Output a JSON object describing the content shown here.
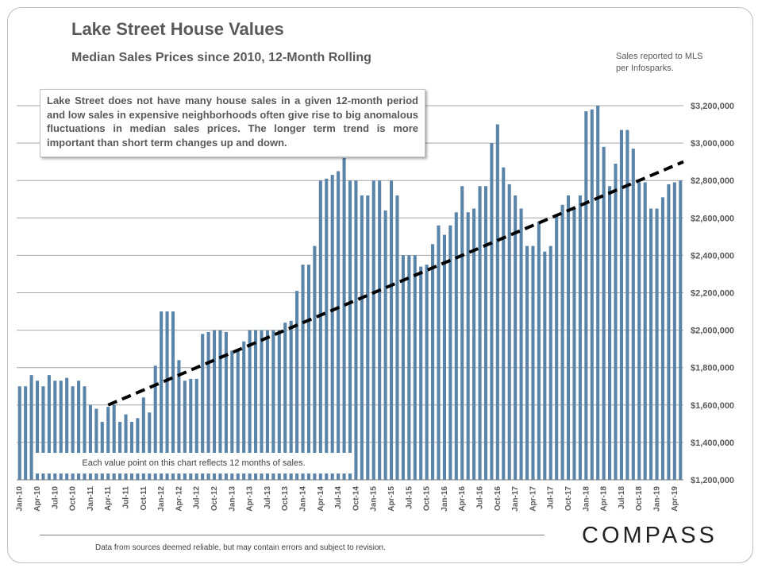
{
  "header": {
    "title": "Lake Street House Values",
    "subtitle": "Median Sales Prices since 2010, 12-Month Rolling",
    "source": [
      "Sales reported to MLS",
      "per Infosparks."
    ]
  },
  "note": "Lake Street does not have many house sales in a given 12-month period and low sales in expensive neighborhoods often give rise to big anomalous fluctuations in median sales prices. The longer term trend is more important than short term changes up and down.",
  "each_value_note": "Each value point on this chart reflects 12 months of sales.",
  "footer": "Data from sources deemed reliable, but may contain errors and subject to revision.",
  "logo": "COMPASS",
  "colors": {
    "bar": "#5b84a9",
    "trend": "#000000",
    "grid": "#a6a6a6",
    "text": "#595959"
  },
  "chart_data": {
    "type": "bar",
    "title": "Lake Street House Values",
    "subtitle": "Median Sales Prices since 2010, 12-Month Rolling",
    "ylim": [
      1200000,
      3200000
    ],
    "yticks": [
      1200000,
      1400000,
      1600000,
      1800000,
      2000000,
      2200000,
      2400000,
      2600000,
      2800000,
      3000000,
      3200000
    ],
    "ytick_labels": [
      "$1,200,000",
      "$1,400,000",
      "$1,600,000",
      "$1,800,000",
      "$2,000,000",
      "$2,200,000",
      "$2,400,000",
      "$2,600,000",
      "$2,800,000",
      "$3,000,000",
      "$3,200,000"
    ],
    "y_axis_position": "right",
    "grid": true,
    "x_labels": [
      "Jan-10",
      "Apr-10",
      "Jul-10",
      "Oct-10",
      "Jan-11",
      "Apr-11",
      "Jul-11",
      "Oct-11",
      "Jan-12",
      "Apr-12",
      "Jul-12",
      "Oct-12",
      "Jan-13",
      "Apr-13",
      "Jul-13",
      "Oct-13",
      "Jan-14",
      "Apr-14",
      "Jul-14",
      "Oct-14",
      "Jan-15",
      "Apr-15",
      "Jul-15",
      "Oct-15",
      "Jan-16",
      "Apr-16",
      "Jul-16",
      "Oct-16",
      "Jan-17",
      "Apr-17",
      "Jul-17",
      "Oct-17",
      "Jan-18",
      "Apr-18",
      "Jul-18",
      "Oct-18",
      "Jan-19",
      "Apr-19"
    ],
    "x_label_step_months": 3,
    "series": [
      {
        "name": "Median Sales Price (monthly, 12-month rolling)",
        "start": "Jan-10",
        "values": [
          1700000,
          1700000,
          1760000,
          1730000,
          1700000,
          1760000,
          1730000,
          1730000,
          1745000,
          1700000,
          1730000,
          1700000,
          1600000,
          1580000,
          1510000,
          1590000,
          1600000,
          1510000,
          1550000,
          1510000,
          1530000,
          1640000,
          1560000,
          1810000,
          2100000,
          2100000,
          2100000,
          1840000,
          1730000,
          1740000,
          1740000,
          1980000,
          1990000,
          2000000,
          2000000,
          1990000,
          1890000,
          1900000,
          1940000,
          2000000,
          2000000,
          2000000,
          2000000,
          2000000,
          2000000,
          2040000,
          2050000,
          2210000,
          2350000,
          2350000,
          2450000,
          2800000,
          2810000,
          2830000,
          2850000,
          2920000,
          2800000,
          2800000,
          2720000,
          2720000,
          2800000,
          2800000,
          2640000,
          2800000,
          2720000,
          2400000,
          2400000,
          2400000,
          2340000,
          2350000,
          2460000,
          2560000,
          2510000,
          2560000,
          2630000,
          2770000,
          2630000,
          2650000,
          2770000,
          2770000,
          3000000,
          3100000,
          2870000,
          2780000,
          2720000,
          2650000,
          2450000,
          2450000,
          2580000,
          2420000,
          2450000,
          2620000,
          2670000,
          2720000,
          2650000,
          2720000,
          3170000,
          3180000,
          3200000,
          2980000,
          2770000,
          2890000,
          3070000,
          3070000,
          2970000,
          2790000,
          2790000,
          2650000,
          2650000,
          2710000,
          2780000,
          2790000,
          2800000
        ]
      }
    ],
    "trendline": {
      "style": "dashed",
      "start_month": "Apr-11",
      "start_value": 1600000,
      "end_month": "Apr-19",
      "end_value": 2900000
    }
  }
}
